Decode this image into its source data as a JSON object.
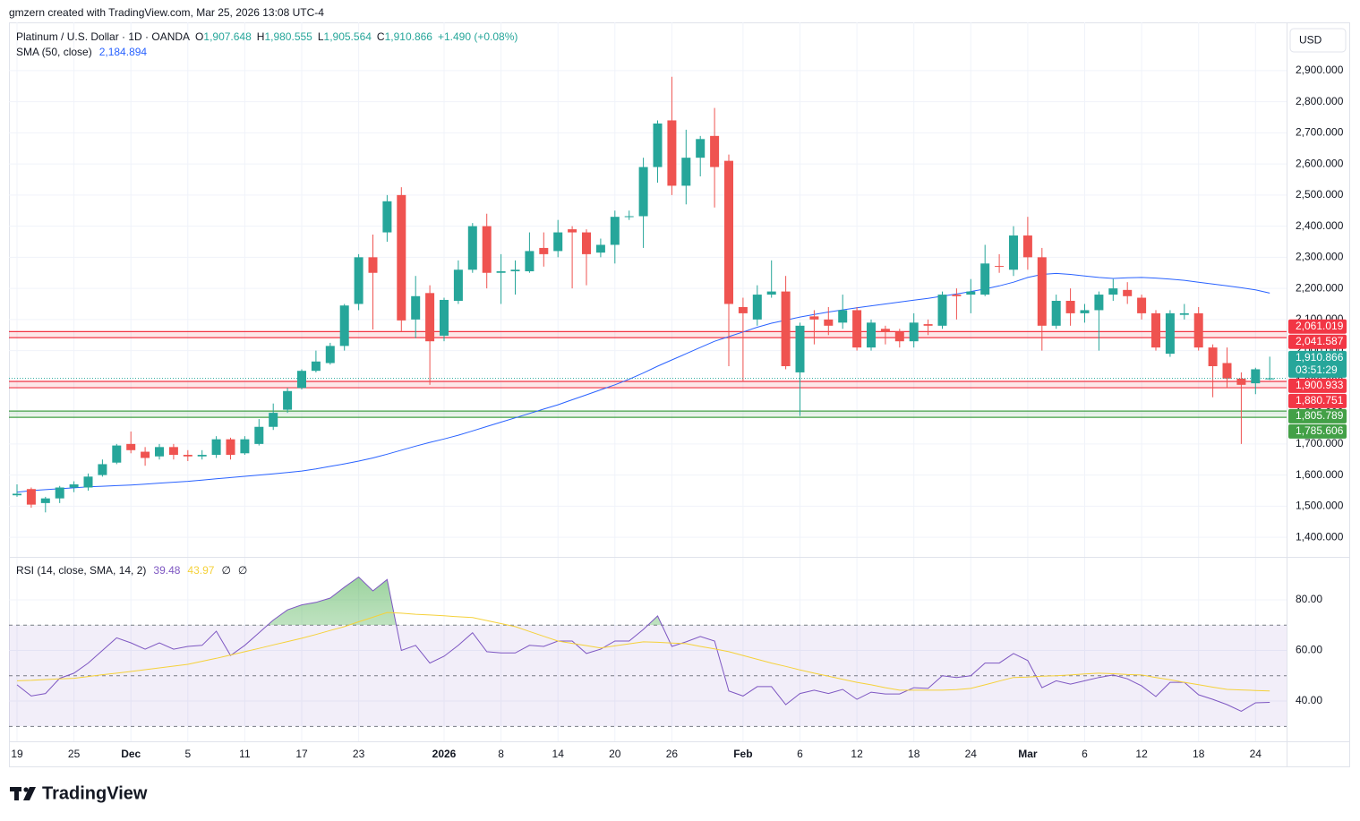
{
  "header": {
    "attribution": "gmzern created with TradingView.com, Mar 25, 2026 13:08 UTC-4",
    "brand": "TradingView"
  },
  "chart_data": [
    {
      "type": "candlestick",
      "title": "Platinum / U.S. Dollar · 1D · OANDA",
      "ohlc_legend": [
        {
          "key": "O",
          "value": "1,907.648"
        },
        {
          "key": "H",
          "value": "1,980.555"
        },
        {
          "key": "L",
          "value": "1,905.564"
        },
        {
          "key": "C",
          "value": "1,910.866"
        }
      ],
      "change": "+1.490 (+0.08%)",
      "currency": "USD",
      "up_color": "#26a69a",
      "down_color": "#ef5350",
      "categories": [
        "19",
        null,
        null,
        null,
        "25",
        null,
        null,
        null,
        "Dec",
        null,
        null,
        null,
        "5",
        null,
        null,
        null,
        "11",
        null,
        null,
        null,
        "17",
        null,
        null,
        null,
        "23",
        null,
        null,
        null,
        null,
        null,
        "2026",
        null,
        null,
        null,
        "8",
        null,
        null,
        null,
        "14",
        null,
        null,
        null,
        "20",
        null,
        null,
        null,
        "26",
        null,
        null,
        null,
        null,
        "Feb",
        null,
        null,
        null,
        "6",
        null,
        null,
        null,
        "12",
        null,
        null,
        null,
        "18",
        null,
        null,
        null,
        "24",
        null,
        null,
        null,
        "Mar",
        null,
        null,
        null,
        "6",
        null,
        null,
        null,
        "12",
        null,
        null,
        null,
        "18",
        null,
        null,
        null,
        "24",
        null
      ],
      "open": [
        1535,
        1555,
        1510,
        1525,
        1560,
        1560,
        1600,
        1640,
        1700,
        1675,
        1660,
        1690,
        1665,
        1660,
        1665,
        1715,
        1670,
        1700,
        1755,
        1810,
        1880,
        1935,
        1960,
        2015,
        2150,
        2300,
        2380,
        2500,
        2100,
        2185,
        2048,
        2160,
        2260,
        2400,
        2250,
        2255,
        2255,
        2330,
        2320,
        2390,
        2380,
        2315,
        2340,
        2430,
        2432,
        2590,
        2740,
        2530,
        2620,
        2690,
        2610,
        2140,
        2100,
        2180,
        2190,
        1930,
        2110,
        2100,
        2090,
        2130,
        2010,
        2070,
        2060,
        2030,
        2085,
        2080,
        2180,
        2180,
        2180,
        2272,
        2260,
        2370,
        2300,
        2080,
        2160,
        2120,
        2130,
        2180,
        2195,
        2170,
        2120,
        1990,
        2115,
        2120,
        2010,
        1960,
        1910,
        1895,
        1907.648
      ],
      "high": [
        1570,
        1560,
        1530,
        1565,
        1580,
        1605,
        1650,
        1700,
        1740,
        1690,
        1700,
        1700,
        1680,
        1680,
        1725,
        1720,
        1725,
        1780,
        1830,
        1880,
        1940,
        2000,
        2025,
        2150,
        2310,
        2373,
        2500,
        2525,
        2240,
        2210,
        2170,
        2290,
        2410,
        2440,
        2310,
        2290,
        2380,
        2380,
        2420,
        2400,
        2390,
        2360,
        2450,
        2450,
        2620,
        2740,
        2880,
        2710,
        2690,
        2780,
        2630,
        2170,
        2210,
        2290,
        2240,
        2090,
        2130,
        2140,
        2180,
        2140,
        2100,
        2080,
        2070,
        2120,
        2100,
        2190,
        2200,
        2230,
        2340,
        2310,
        2400,
        2430,
        2330,
        2180,
        2200,
        2150,
        2190,
        2230,
        2220,
        2180,
        2130,
        2130,
        2150,
        2140,
        2020,
        2010,
        1930,
        1945,
        1980.555
      ],
      "low": [
        1530,
        1495,
        1480,
        1510,
        1545,
        1550,
        1595,
        1635,
        1670,
        1630,
        1650,
        1650,
        1645,
        1650,
        1655,
        1650,
        1665,
        1695,
        1745,
        1800,
        1875,
        1930,
        1955,
        2000,
        2130,
        2068,
        2350,
        2060,
        2040,
        1890,
        2030,
        2150,
        2250,
        2200,
        2150,
        2180,
        2250,
        2270,
        2300,
        2200,
        2210,
        2300,
        2280,
        2420,
        2330,
        2540,
        2500,
        2470,
        2560,
        2460,
        1950,
        1900,
        2080,
        2170,
        1940,
        1790,
        2020,
        2050,
        2070,
        2000,
        2000,
        2020,
        2010,
        2010,
        2050,
        2070,
        2100,
        2120,
        2175,
        2250,
        2240,
        2260,
        2000,
        2070,
        2080,
        2090,
        2000,
        2160,
        2150,
        2100,
        2000,
        1980,
        2100,
        2000,
        1850,
        1880,
        1700,
        1860,
        1905.564
      ],
      "close": [
        1540,
        1505,
        1525,
        1560,
        1570,
        1595,
        1635,
        1695,
        1680,
        1655,
        1690,
        1665,
        1660,
        1665,
        1715,
        1665,
        1715,
        1755,
        1800,
        1870,
        1935,
        1965,
        2015,
        2145,
        2300,
        2250,
        2480,
        2097,
        2175,
        2030,
        2163,
        2260,
        2400,
        2250,
        2255,
        2260,
        2320,
        2310,
        2380,
        2380,
        2310,
        2340,
        2430,
        2432,
        2590,
        2730,
        2530,
        2620,
        2680,
        2590,
        2150,
        2120,
        2180,
        2190,
        1950,
        2080,
        2100,
        2080,
        2130,
        2010,
        2090,
        2060,
        2030,
        2090,
        2080,
        2180,
        2175,
        2190,
        2280,
        2270,
        2370,
        2300,
        2080,
        2160,
        2120,
        2130,
        2180,
        2200,
        2175,
        2120,
        2010,
        2120,
        2120,
        2010,
        1950,
        1910,
        1890,
        1940,
        1910.866
      ],
      "series": [
        {
          "name": "SMA (50, close)",
          "color": "#2962ff",
          "value_label": "2,184.894",
          "values": [
            1545,
            1550,
            1553,
            1556,
            1559,
            1562,
            1564,
            1566,
            1568,
            1571,
            1574,
            1577,
            1580,
            1584,
            1588,
            1592,
            1596,
            1600,
            1604,
            1608,
            1613,
            1620,
            1628,
            1636,
            1645,
            1655,
            1667,
            1680,
            1693,
            1705,
            1716,
            1728,
            1742,
            1756,
            1770,
            1784,
            1798,
            1812,
            1826,
            1842,
            1858,
            1874,
            1890,
            1908,
            1928,
            1950,
            1970,
            1990,
            2010,
            2030,
            2045,
            2060,
            2075,
            2088,
            2098,
            2108,
            2116,
            2124,
            2131,
            2138,
            2144,
            2150,
            2156,
            2162,
            2168,
            2175,
            2182,
            2190,
            2198,
            2208,
            2220,
            2235,
            2245,
            2248,
            2245,
            2240,
            2235,
            2232,
            2234,
            2235,
            2233,
            2230,
            2226,
            2220,
            2214,
            2208,
            2202,
            2195,
            2184.894
          ]
        }
      ],
      "ylim": [
        1337,
        3055
      ],
      "yticks": [
        {
          "value": 1400,
          "label": "1,400.000"
        },
        {
          "value": 1500,
          "label": "1,500.000"
        },
        {
          "value": 1600,
          "label": "1,600.000"
        },
        {
          "value": 1700,
          "label": "1,700.000"
        },
        {
          "value": 1800,
          "label": "1,800.000"
        },
        {
          "value": 1900,
          "label": "1,900.000"
        },
        {
          "value": 2000,
          "label": "2,000.000"
        },
        {
          "value": 2100,
          "label": "2,100.000"
        },
        {
          "value": 2200,
          "label": "2,200.000"
        },
        {
          "value": 2300,
          "label": "2,300.000"
        },
        {
          "value": 2400,
          "label": "2,400.000"
        },
        {
          "value": 2500,
          "label": "2,500.000"
        },
        {
          "value": 2600,
          "label": "2,600.000"
        },
        {
          "value": 2700,
          "label": "2,700.000"
        },
        {
          "value": 2800,
          "label": "2,800.000"
        },
        {
          "value": 2900,
          "label": "2,900.000"
        }
      ],
      "grid": true,
      "zones": [
        {
          "color": "#f23645",
          "lines": [
            {
              "value": 2061.019,
              "label": "2,061.019"
            },
            {
              "value": 2041.587,
              "label": "2,041.587"
            }
          ]
        },
        {
          "color": "#f23645",
          "lines": [
            {
              "value": 1900.933,
              "label": "1,900.933"
            },
            {
              "value": 1880.751,
              "label": "1,880.751"
            }
          ]
        },
        {
          "color": "#43a047",
          "lines": [
            {
              "value": 1805.789,
              "label": "1,805.789"
            },
            {
              "value": 1785.606,
              "label": "1,785.606"
            }
          ]
        }
      ],
      "last_price": {
        "value": 1910.866,
        "label": "1,910.866",
        "countdown": "03:51:29"
      }
    },
    {
      "type": "line",
      "title": "RSI (14, close, SMA, 14, 2)",
      "extra": [
        "∅",
        "∅"
      ],
      "series": [
        {
          "color": "#7e57c2",
          "value_label": "39.48",
          "values": [
            46.4,
            42,
            43,
            49,
            51,
            55,
            60,
            65,
            63,
            60.5,
            63,
            60.5,
            61.6,
            62,
            67.6,
            58,
            62,
            67,
            72,
            76,
            78,
            79,
            80.7,
            85,
            89,
            83.5,
            88,
            60,
            62,
            55,
            57.7,
            62,
            67,
            59.5,
            59,
            59,
            62,
            61.6,
            63.7,
            63.7,
            58.8,
            60.5,
            63.7,
            63.7,
            68.3,
            73.6,
            61.6,
            63.4,
            65.5,
            63.7,
            44,
            42,
            45.7,
            45.7,
            38.6,
            43,
            44.3,
            43,
            44.6,
            40.7,
            43.5,
            42.8,
            42.8,
            45.3,
            45,
            50,
            49.3,
            50,
            55,
            55,
            58.8,
            56,
            45.3,
            48,
            46.7,
            48,
            49.3,
            50.3,
            48.8,
            46,
            41.8,
            47.4,
            47.4,
            42.5,
            40.7,
            38.6,
            36,
            39.3,
            39.48
          ]
        },
        {
          "color": "#f5d13a",
          "value_label": "43.97",
          "values": [
            48,
            48.2,
            48.5,
            48.8,
            49,
            49.7,
            50.4,
            51,
            51.7,
            52.4,
            53.1,
            53.8,
            54.5,
            55.7,
            56.9,
            58.2,
            59.5,
            60.8,
            62.2,
            63.5,
            64.8,
            66.3,
            67.9,
            69.4,
            71.3,
            73.1,
            75,
            74.7,
            74.3,
            74,
            73.7,
            73.3,
            73,
            71.8,
            70.6,
            69.4,
            67.5,
            65.6,
            63.7,
            62.8,
            61.9,
            61,
            61.8,
            62.6,
            63.4,
            63.2,
            62.9,
            62.7,
            61.6,
            60.6,
            59.5,
            58,
            56.5,
            55,
            53.7,
            52.3,
            51,
            49.8,
            48.6,
            47.4,
            46.4,
            45.3,
            44.3,
            44.3,
            44.3,
            44.3,
            44.5,
            45,
            46.4,
            47.9,
            49.3,
            49.5,
            49.8,
            50,
            50.3,
            50.7,
            51,
            50.8,
            50.5,
            50.3,
            49.3,
            48.4,
            47.4,
            46.5,
            45.5,
            44.6,
            44.4,
            44.2,
            43.97
          ]
        }
      ],
      "ylim": [
        24.1,
        96.6
      ],
      "yticks": [
        {
          "value": 40,
          "label": "40.00"
        },
        {
          "value": 60,
          "label": "60.00"
        },
        {
          "value": 80,
          "label": "80.00"
        }
      ],
      "bands": [
        30,
        50,
        70
      ],
      "overbought_color": "#4caf50"
    }
  ]
}
